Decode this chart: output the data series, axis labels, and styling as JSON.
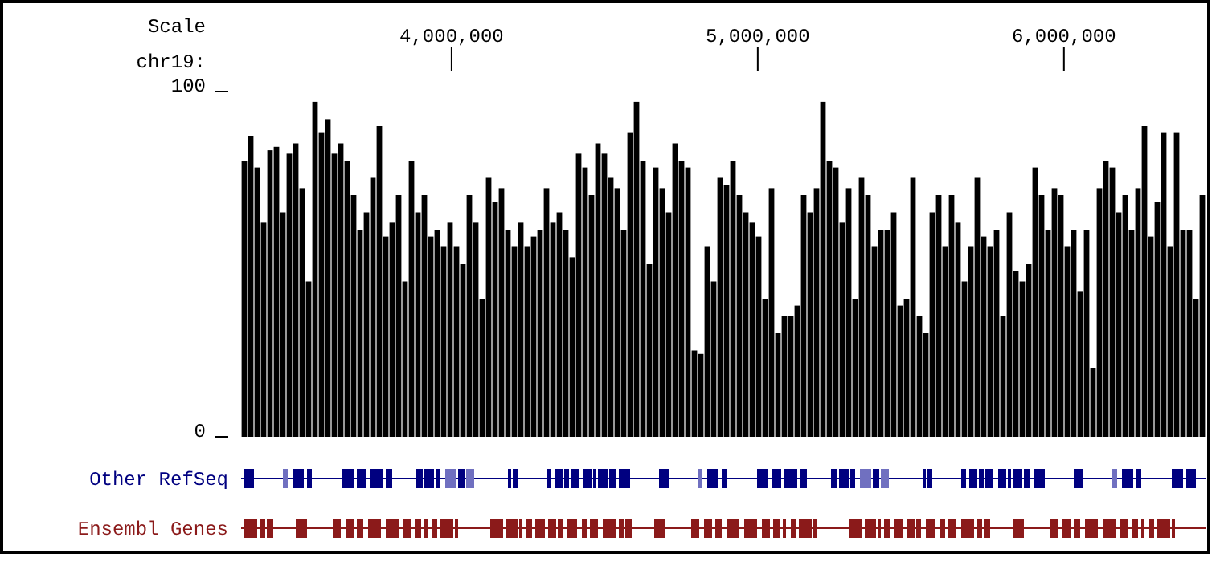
{
  "chart_data": {
    "type": "bar",
    "xlabel": "chr19:",
    "color": "#000000",
    "annotations": [
      "Scale",
      "Other RefSeq",
      "Ensembl Genes"
    ],
    "xlim": [
      3312500,
      6462500
    ],
    "xticks": [
      {
        "value": 4000000,
        "label": "4,000,000"
      },
      {
        "value": 5000000,
        "label": "5,000,000"
      },
      {
        "value": 6000000,
        "label": "6,000,000"
      }
    ],
    "ylim": [
      0,
      100
    ],
    "yticks": [
      0,
      100
    ],
    "grid": false,
    "x": [
      3323000,
      3344000,
      3365000,
      3386000,
      3407000,
      3428000,
      3449000,
      3470000,
      3491000,
      3512000,
      3533000,
      3554000,
      3575000,
      3596000,
      3617000,
      3638000,
      3659000,
      3680000,
      3701000,
      3722000,
      3743000,
      3764000,
      3785000,
      3806000,
      3827000,
      3848000,
      3869000,
      3890000,
      3911000,
      3932000,
      3953000,
      3974000,
      3995000,
      4016000,
      4037000,
      4058000,
      4079000,
      4100000,
      4121000,
      4142000,
      4163000,
      4184000,
      4205000,
      4226000,
      4247000,
      4268000,
      4289000,
      4310000,
      4331000,
      4352000,
      4373000,
      4394000,
      4415000,
      4436000,
      4457000,
      4478000,
      4499000,
      4520000,
      4541000,
      4562000,
      4583000,
      4604000,
      4625000,
      4646000,
      4667000,
      4688000,
      4709000,
      4730000,
      4751000,
      4772000,
      4793000,
      4814000,
      4835000,
      4856000,
      4877000,
      4898000,
      4919000,
      4940000,
      4961000,
      4982000,
      5003000,
      5024000,
      5045000,
      5066000,
      5087000,
      5108000,
      5129000,
      5150000,
      5171000,
      5192000,
      5213000,
      5234000,
      5255000,
      5276000,
      5297000,
      5318000,
      5339000,
      5360000,
      5381000,
      5402000,
      5423000,
      5444000,
      5465000,
      5486000,
      5507000,
      5528000,
      5549000,
      5570000,
      5591000,
      5612000,
      5633000,
      5654000,
      5675000,
      5696000,
      5717000,
      5738000,
      5759000,
      5780000,
      5801000,
      5822000,
      5843000,
      5864000,
      5885000,
      5906000,
      5927000,
      5948000,
      5969000,
      5990000,
      6011000,
      6032000,
      6053000,
      6074000,
      6095000,
      6116000,
      6137000,
      6158000,
      6179000,
      6200000,
      6221000,
      6242000,
      6263000,
      6284000,
      6305000,
      6326000,
      6347000,
      6368000,
      6389000,
      6410000,
      6431000,
      6452000
    ],
    "values": [
      80,
      87,
      78,
      62,
      83,
      84,
      65,
      82,
      85,
      72,
      45,
      97,
      88,
      92,
      82,
      85,
      80,
      70,
      60,
      65,
      75,
      90,
      58,
      62,
      70,
      45,
      80,
      65,
      70,
      58,
      60,
      55,
      62,
      55,
      50,
      70,
      62,
      40,
      75,
      68,
      72,
      60,
      55,
      62,
      55,
      58,
      60,
      72,
      62,
      65,
      60,
      52,
      82,
      78,
      70,
      85,
      82,
      75,
      72,
      60,
      88,
      97,
      80,
      50,
      78,
      72,
      65,
      85,
      80,
      78,
      25,
      24,
      55,
      45,
      75,
      73,
      80,
      70,
      65,
      62,
      58,
      40,
      72,
      30,
      35,
      35,
      38,
      70,
      65,
      72,
      97,
      80,
      78,
      62,
      72,
      40,
      75,
      70,
      55,
      60,
      60,
      65,
      38,
      40,
      75,
      35,
      30,
      65,
      70,
      55,
      70,
      62,
      45,
      55,
      75,
      58,
      55,
      60,
      35,
      65,
      48,
      45,
      50,
      78,
      70,
      60,
      72,
      70,
      55,
      60,
      42,
      60,
      20,
      72,
      80,
      78,
      65,
      70,
      60,
      72,
      90,
      58,
      68,
      88,
      55,
      88,
      60,
      60,
      40,
      70
    ]
  }
}
